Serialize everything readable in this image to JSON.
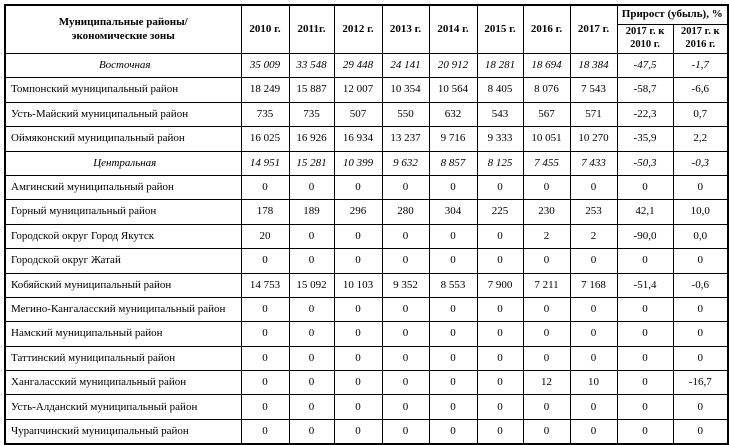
{
  "table": {
    "corner_header": "Муниципальные районы/\nэкономические зоны",
    "year_headers": [
      "2010 г.",
      "2011г.",
      "2012 г.",
      "2013 г.",
      "2014 г.",
      "2015 г.",
      "2016 г.",
      "2017 г."
    ],
    "growth_header": "Прирост (убыль), %",
    "growth_subheaders": [
      "2017 г. к\n2010 г.",
      "2017 г. к\n2016 г."
    ],
    "rows": [
      {
        "name": "Восточная",
        "zone": true,
        "values": [
          "35 009",
          "33 548",
          "29 448",
          "24 141",
          "20 912",
          "18 281",
          "18 694",
          "18 384",
          "-47,5",
          "-1,7"
        ]
      },
      {
        "name": "Томпонский муниципальный район",
        "zone": false,
        "values": [
          "18 249",
          "15 887",
          "12 007",
          "10 354",
          "10 564",
          "8 405",
          "8 076",
          "7 543",
          "-58,7",
          "-6,6"
        ]
      },
      {
        "name": "Усть-Майский муниципальный район",
        "zone": false,
        "values": [
          "735",
          "735",
          "507",
          "550",
          "632",
          "543",
          "567",
          "571",
          "-22,3",
          "0,7"
        ]
      },
      {
        "name": "Оймяконский муниципальный район",
        "zone": false,
        "values": [
          "16 025",
          "16 926",
          "16 934",
          "13 237",
          "9 716",
          "9 333",
          "10 051",
          "10 270",
          "-35,9",
          "2,2"
        ]
      },
      {
        "name": "Центральная",
        "zone": true,
        "values": [
          "14 951",
          "15 281",
          "10 399",
          "9 632",
          "8 857",
          "8 125",
          "7 455",
          "7 433",
          "-50,3",
          "-0,3"
        ]
      },
      {
        "name": "Амгинский муниципальный район",
        "zone": false,
        "values": [
          "0",
          "0",
          "0",
          "0",
          "0",
          "0",
          "0",
          "0",
          "0",
          "0"
        ]
      },
      {
        "name": "Горный муниципальный район",
        "zone": false,
        "values": [
          "178",
          "189",
          "296",
          "280",
          "304",
          "225",
          "230",
          "253",
          "42,1",
          "10,0"
        ]
      },
      {
        "name": "Городской округ Город Якутск",
        "zone": false,
        "values": [
          "20",
          "0",
          "0",
          "0",
          "0",
          "0",
          "2",
          "2",
          "-90,0",
          "0,0"
        ]
      },
      {
        "name": "Городской округ Жатай",
        "zone": false,
        "values": [
          "0",
          "0",
          "0",
          "0",
          "0",
          "0",
          "0",
          "0",
          "0",
          "0"
        ]
      },
      {
        "name": "Кобяйский муниципальный район",
        "zone": false,
        "values": [
          "14 753",
          "15 092",
          "10 103",
          "9 352",
          "8 553",
          "7 900",
          "7 211",
          "7 168",
          "-51,4",
          "-0,6"
        ]
      },
      {
        "name": "Мегино-Кангаласский муниципальный район",
        "zone": false,
        "values": [
          "0",
          "0",
          "0",
          "0",
          "0",
          "0",
          "0",
          "0",
          "0",
          "0"
        ]
      },
      {
        "name": "Намский муниципальный район",
        "zone": false,
        "values": [
          "0",
          "0",
          "0",
          "0",
          "0",
          "0",
          "0",
          "0",
          "0",
          "0"
        ]
      },
      {
        "name": "Таттинский муниципальный район",
        "zone": false,
        "values": [
          "0",
          "0",
          "0",
          "0",
          "0",
          "0",
          "0",
          "0",
          "0",
          "0"
        ]
      },
      {
        "name": "Хангаласский муниципальный район",
        "zone": false,
        "values": [
          "0",
          "0",
          "0",
          "0",
          "0",
          "0",
          "12",
          "10",
          "0",
          "-16,7"
        ]
      },
      {
        "name": "Усть-Алданский муниципальный район",
        "zone": false,
        "values": [
          "0",
          "0",
          "0",
          "0",
          "0",
          "0",
          "0",
          "0",
          "0",
          "0"
        ]
      },
      {
        "name": "Чурапчинский муниципальный район",
        "zone": false,
        "values": [
          "0",
          "0",
          "0",
          "0",
          "0",
          "0",
          "0",
          "0",
          "0",
          "0"
        ]
      }
    ]
  }
}
